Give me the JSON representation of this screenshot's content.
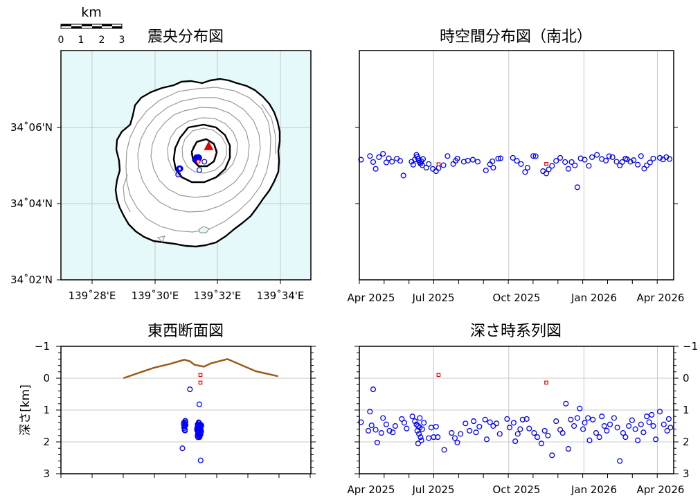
{
  "scalebar": {
    "unit": "km",
    "ticks": [
      "0",
      "1",
      "2",
      "3"
    ]
  },
  "colors": {
    "sea": "#e6f9fa",
    "grid": "#c8c8c8",
    "event": "#0000ff",
    "recent_event": "#e00000",
    "volcano": "#e00000",
    "topography": "#9b5a14",
    "contour_major": "#000000",
    "contour_minor": "#999999"
  },
  "chart_data": [
    {
      "id": "epicenter",
      "type": "scatter",
      "title": "震央分布図",
      "x_ticks": [
        "139˚28'E",
        "139˚30'E",
        "139˚32'E",
        "139˚34'E"
      ],
      "y_ticks": [
        "34˚06'N",
        "34˚04'N",
        "34˚02'N"
      ],
      "xlim": [
        139.45,
        139.5833
      ],
      "ylim": [
        34.0333,
        34.1333
      ],
      "x_tick_values": [
        139.4667,
        139.5,
        139.5333,
        139.5667
      ],
      "y_tick_values": [
        34.1,
        34.0667,
        34.0333
      ],
      "summit": {
        "lon": 139.5288,
        "lat": 34.0917
      },
      "clusters": [
        {
          "lon": 139.5228,
          "lat": 34.0863,
          "spread": 0.0012,
          "count": 80
        },
        {
          "lon": 139.5133,
          "lat": 34.0818,
          "spread": 0.0007,
          "count": 18
        }
      ],
      "extra_points": [
        {
          "lon": 139.5125,
          "lat": 34.0792
        },
        {
          "lon": 139.5238,
          "lat": 34.0812
        },
        {
          "lon": 139.5265,
          "lat": 34.0848
        }
      ],
      "recent_events": [
        {
          "lon": 139.5233,
          "lat": 34.0849
        }
      ]
    },
    {
      "id": "spacetime",
      "type": "scatter",
      "title": "時空間分布図（南北）",
      "x_ticks": [
        "Apr 2025",
        "Jul 2025",
        "Oct 2025",
        "Jan 2026",
        "Apr 2026"
      ],
      "x_tick_values": [
        0,
        91,
        183,
        275,
        365
      ],
      "xlim": [
        0,
        385
      ],
      "ylim": [
        34.0333,
        34.1333
      ],
      "y_tick_values": [
        34.1,
        34.0667
      ],
      "events": [
        {
          "t": 2,
          "lat": 34.0857
        },
        {
          "t": 13,
          "lat": 34.0873
        },
        {
          "t": 17,
          "lat": 34.0847
        },
        {
          "t": 20,
          "lat": 34.0817
        },
        {
          "t": 24,
          "lat": 34.0868
        },
        {
          "t": 29,
          "lat": 34.0883
        },
        {
          "t": 33,
          "lat": 34.0845
        },
        {
          "t": 36,
          "lat": 34.0863
        },
        {
          "t": 40,
          "lat": 34.0848
        },
        {
          "t": 46,
          "lat": 34.0862
        },
        {
          "t": 50,
          "lat": 34.0852
        },
        {
          "t": 54,
          "lat": 34.0788
        },
        {
          "t": 64,
          "lat": 34.0848
        },
        {
          "t": 66,
          "lat": 34.0835
        },
        {
          "t": 68,
          "lat": 34.0858
        },
        {
          "t": 70,
          "lat": 34.0878
        },
        {
          "t": 71,
          "lat": 34.087
        },
        {
          "t": 72,
          "lat": 34.0862
        },
        {
          "t": 73,
          "lat": 34.0852
        },
        {
          "t": 74,
          "lat": 34.0845
        },
        {
          "t": 75,
          "lat": 34.084
        },
        {
          "t": 76,
          "lat": 34.085
        },
        {
          "t": 77,
          "lat": 34.0833
        },
        {
          "t": 78,
          "lat": 34.086
        },
        {
          "t": 82,
          "lat": 34.0822
        },
        {
          "t": 85,
          "lat": 34.0838
        },
        {
          "t": 90,
          "lat": 34.0817
        },
        {
          "t": 94,
          "lat": 34.0807
        },
        {
          "t": 97,
          "lat": 34.082
        },
        {
          "t": 103,
          "lat": 34.0833
        },
        {
          "t": 108,
          "lat": 34.0873
        },
        {
          "t": 115,
          "lat": 34.0838
        },
        {
          "t": 118,
          "lat": 34.0852
        },
        {
          "t": 120,
          "lat": 34.0862
        },
        {
          "t": 128,
          "lat": 34.0848
        },
        {
          "t": 133,
          "lat": 34.0853
        },
        {
          "t": 139,
          "lat": 34.0857
        },
        {
          "t": 145,
          "lat": 34.0848
        },
        {
          "t": 155,
          "lat": 34.081
        },
        {
          "t": 160,
          "lat": 34.0837
        },
        {
          "t": 163,
          "lat": 34.085
        },
        {
          "t": 164,
          "lat": 34.0822
        },
        {
          "t": 170,
          "lat": 34.0862
        },
        {
          "t": 173,
          "lat": 34.0863
        },
        {
          "t": 188,
          "lat": 34.0865
        },
        {
          "t": 193,
          "lat": 34.0852
        },
        {
          "t": 198,
          "lat": 34.0838
        },
        {
          "t": 203,
          "lat": 34.0803
        },
        {
          "t": 206,
          "lat": 34.0822
        },
        {
          "t": 213,
          "lat": 34.0873
        },
        {
          "t": 216,
          "lat": 34.0872
        },
        {
          "t": 225,
          "lat": 34.0807
        },
        {
          "t": 229,
          "lat": 34.0797
        },
        {
          "t": 232,
          "lat": 34.0815
        },
        {
          "t": 236,
          "lat": 34.083
        },
        {
          "t": 241,
          "lat": 34.0852
        },
        {
          "t": 246,
          "lat": 34.0865
        },
        {
          "t": 252,
          "lat": 34.0847
        },
        {
          "t": 256,
          "lat": 34.0817
        },
        {
          "t": 260,
          "lat": 34.0847
        },
        {
          "t": 264,
          "lat": 34.0832
        },
        {
          "t": 267,
          "lat": 34.0737
        },
        {
          "t": 271,
          "lat": 34.0863
        },
        {
          "t": 276,
          "lat": 34.0857
        },
        {
          "t": 281,
          "lat": 34.083
        },
        {
          "t": 285,
          "lat": 34.0868
        },
        {
          "t": 291,
          "lat": 34.0878
        },
        {
          "t": 297,
          "lat": 34.086
        },
        {
          "t": 302,
          "lat": 34.0853
        },
        {
          "t": 306,
          "lat": 34.0872
        },
        {
          "t": 310,
          "lat": 34.0868
        },
        {
          "t": 315,
          "lat": 34.0848
        },
        {
          "t": 319,
          "lat": 34.0832
        },
        {
          "t": 322,
          "lat": 34.0847
        },
        {
          "t": 326,
          "lat": 34.0862
        },
        {
          "t": 328,
          "lat": 34.0858
        },
        {
          "t": 332,
          "lat": 34.0848
        },
        {
          "t": 336,
          "lat": 34.0855
        },
        {
          "t": 341,
          "lat": 34.0835
        },
        {
          "t": 345,
          "lat": 34.0873
        },
        {
          "t": 349,
          "lat": 34.0818
        },
        {
          "t": 352,
          "lat": 34.0832
        },
        {
          "t": 356,
          "lat": 34.0845
        },
        {
          "t": 360,
          "lat": 34.0862
        },
        {
          "t": 368,
          "lat": 34.0865
        },
        {
          "t": 372,
          "lat": 34.0858
        },
        {
          "t": 376,
          "lat": 34.0868
        },
        {
          "t": 380,
          "lat": 34.086
        }
      ],
      "recent_events": [
        {
          "t": 97,
          "lat": 34.0837
        },
        {
          "t": 229,
          "lat": 34.0838
        }
      ]
    },
    {
      "id": "ew-section",
      "type": "scatter",
      "title": "東西断面図",
      "ylabel": "深さ[km]",
      "y_ticks": [
        "−1",
        "0",
        "1",
        "2",
        "3"
      ],
      "y_tick_values": [
        -1,
        0,
        1,
        2,
        3
      ],
      "xlim": [
        139.45,
        139.5833
      ],
      "ylim": [
        -1,
        3
      ],
      "x_tick_values": [
        139.4667,
        139.5,
        139.5333,
        139.5667
      ],
      "topography": [
        {
          "lon": 139.4833,
          "depth": 0.0
        },
        {
          "lon": 139.4917,
          "depth": -0.17
        },
        {
          "lon": 139.4998,
          "depth": -0.33
        },
        {
          "lon": 139.5083,
          "depth": -0.45
        },
        {
          "lon": 139.5158,
          "depth": -0.58
        },
        {
          "lon": 139.5188,
          "depth": -0.53
        },
        {
          "lon": 139.5213,
          "depth": -0.42
        },
        {
          "lon": 139.5262,
          "depth": -0.36
        },
        {
          "lon": 139.5302,
          "depth": -0.47
        },
        {
          "lon": 139.5388,
          "depth": -0.6
        },
        {
          "lon": 139.5538,
          "depth": -0.22
        },
        {
          "lon": 139.5658,
          "depth": -0.06
        }
      ],
      "clusters": [
        {
          "lon": 139.5238,
          "depth": 1.62,
          "lon_spread": 0.0015,
          "depth_spread": 0.3,
          "count": 85
        },
        {
          "lon": 139.516,
          "depth": 1.45,
          "lon_spread": 0.0008,
          "depth_spread": 0.3,
          "count": 18
        }
      ],
      "extra_points": [
        {
          "lon": 139.5148,
          "depth": 2.2
        },
        {
          "lon": 139.5188,
          "depth": 0.35
        },
        {
          "lon": 139.5245,
          "depth": 2.58
        },
        {
          "lon": 139.5238,
          "depth": 0.82
        }
      ],
      "recent_events": [
        {
          "lon": 139.5244,
          "depth": -0.1
        },
        {
          "lon": 139.5244,
          "depth": 0.14
        }
      ]
    },
    {
      "id": "depth-time",
      "type": "scatter",
      "title": "深さ時系列図",
      "x_ticks": [
        "Apr 2025",
        "Jul 2025",
        "Oct 2025",
        "Jan 2026",
        "Apr 2026"
      ],
      "x_tick_values": [
        0,
        91,
        183,
        275,
        365
      ],
      "y_ticks": [
        "−1",
        "0",
        "1",
        "2",
        "3"
      ],
      "y_tick_values": [
        -1,
        0,
        1,
        2,
        3
      ],
      "xlim": [
        0,
        385
      ],
      "ylim": [
        -1,
        3
      ],
      "events": [
        {
          "t": 2,
          "depth": 1.38
        },
        {
          "t": 11,
          "depth": 1.65
        },
        {
          "t": 13,
          "depth": 1.05
        },
        {
          "t": 15,
          "depth": 1.48
        },
        {
          "t": 17,
          "depth": 0.35
        },
        {
          "t": 20,
          "depth": 1.62
        },
        {
          "t": 22,
          "depth": 2.02
        },
        {
          "t": 27,
          "depth": 1.72
        },
        {
          "t": 29,
          "depth": 1.25
        },
        {
          "t": 33,
          "depth": 1.45
        },
        {
          "t": 37,
          "depth": 1.65
        },
        {
          "t": 41,
          "depth": 1.7
        },
        {
          "t": 44,
          "depth": 1.5
        },
        {
          "t": 52,
          "depth": 1.28
        },
        {
          "t": 55,
          "depth": 1.4
        },
        {
          "t": 58,
          "depth": 1.58
        },
        {
          "t": 65,
          "depth": 1.2
        },
        {
          "t": 68,
          "depth": 1.35
        },
        {
          "t": 70,
          "depth": 1.45
        },
        {
          "t": 72,
          "depth": 1.5
        },
        {
          "t": 74,
          "depth": 1.55
        },
        {
          "t": 71,
          "depth": 1.65
        },
        {
          "t": 73,
          "depth": 1.75
        },
        {
          "t": 75,
          "depth": 1.85
        },
        {
          "t": 76,
          "depth": 1.95
        },
        {
          "t": 72,
          "depth": 2.05
        },
        {
          "t": 74,
          "depth": 1.25
        },
        {
          "t": 77,
          "depth": 1.6
        },
        {
          "t": 79,
          "depth": 1.4
        },
        {
          "t": 85,
          "depth": 1.88
        },
        {
          "t": 88,
          "depth": 1.55
        },
        {
          "t": 91,
          "depth": 1.85
        },
        {
          "t": 94,
          "depth": 1.52
        },
        {
          "t": 96,
          "depth": 1.85
        },
        {
          "t": 104,
          "depth": 2.25
        },
        {
          "t": 113,
          "depth": 1.72
        },
        {
          "t": 117,
          "depth": 1.88
        },
        {
          "t": 120,
          "depth": 2.02
        },
        {
          "t": 124,
          "depth": 1.75
        },
        {
          "t": 130,
          "depth": 1.42
        },
        {
          "t": 135,
          "depth": 1.65
        },
        {
          "t": 140,
          "depth": 1.35
        },
        {
          "t": 143,
          "depth": 1.7
        },
        {
          "t": 147,
          "depth": 1.52
        },
        {
          "t": 154,
          "depth": 1.3
        },
        {
          "t": 156,
          "depth": 1.92
        },
        {
          "t": 160,
          "depth": 1.38
        },
        {
          "t": 164,
          "depth": 1.5
        },
        {
          "t": 168,
          "depth": 1.42
        },
        {
          "t": 172,
          "depth": 1.75
        },
        {
          "t": 181,
          "depth": 1.28
        },
        {
          "t": 184,
          "depth": 1.55
        },
        {
          "t": 189,
          "depth": 1.4
        },
        {
          "t": 191,
          "depth": 1.98
        },
        {
          "t": 194,
          "depth": 1.75
        },
        {
          "t": 197,
          "depth": 1.6
        },
        {
          "t": 200,
          "depth": 1.3
        },
        {
          "t": 205,
          "depth": 1.28
        },
        {
          "t": 208,
          "depth": 1.58
        },
        {
          "t": 214,
          "depth": 1.72
        },
        {
          "t": 218,
          "depth": 1.85
        },
        {
          "t": 223,
          "depth": 2.05
        },
        {
          "t": 227,
          "depth": 1.65
        },
        {
          "t": 231,
          "depth": 1.8
        },
        {
          "t": 236,
          "depth": 2.42
        },
        {
          "t": 241,
          "depth": 1.35
        },
        {
          "t": 246,
          "depth": 1.62
        },
        {
          "t": 249,
          "depth": 1.72
        },
        {
          "t": 253,
          "depth": 0.8
        },
        {
          "t": 256,
          "depth": 2.22
        },
        {
          "t": 259,
          "depth": 1.3
        },
        {
          "t": 263,
          "depth": 1.5
        },
        {
          "t": 267,
          "depth": 1.25
        },
        {
          "t": 270,
          "depth": 0.95
        },
        {
          "t": 274,
          "depth": 1.6
        },
        {
          "t": 276,
          "depth": 1.4
        },
        {
          "t": 280,
          "depth": 1.25
        },
        {
          "t": 282,
          "depth": 1.95
        },
        {
          "t": 286,
          "depth": 1.3
        },
        {
          "t": 290,
          "depth": 1.72
        },
        {
          "t": 294,
          "depth": 1.85
        },
        {
          "t": 297,
          "depth": 1.2
        },
        {
          "t": 300,
          "depth": 1.5
        },
        {
          "t": 303,
          "depth": 1.65
        },
        {
          "t": 307,
          "depth": 1.45
        },
        {
          "t": 312,
          "depth": 1.25
        },
        {
          "t": 316,
          "depth": 1.55
        },
        {
          "t": 319,
          "depth": 2.6
        },
        {
          "t": 323,
          "depth": 1.72
        },
        {
          "t": 326,
          "depth": 1.85
        },
        {
          "t": 330,
          "depth": 1.5
        },
        {
          "t": 334,
          "depth": 1.32
        },
        {
          "t": 338,
          "depth": 1.6
        },
        {
          "t": 341,
          "depth": 1.95
        },
        {
          "t": 345,
          "depth": 1.45
        },
        {
          "t": 348,
          "depth": 1.7
        },
        {
          "t": 352,
          "depth": 1.2
        },
        {
          "t": 355,
          "depth": 1.38
        },
        {
          "t": 358,
          "depth": 1.15
        },
        {
          "t": 360,
          "depth": 1.5
        },
        {
          "t": 363,
          "depth": 1.92
        },
        {
          "t": 368,
          "depth": 1.05
        },
        {
          "t": 373,
          "depth": 1.45
        },
        {
          "t": 377,
          "depth": 1.65
        },
        {
          "t": 379,
          "depth": 1.28
        },
        {
          "t": 381,
          "depth": 1.55
        }
      ],
      "recent_events": [
        {
          "t": 97,
          "depth": -0.1
        },
        {
          "t": 229,
          "depth": 0.14
        }
      ]
    }
  ]
}
